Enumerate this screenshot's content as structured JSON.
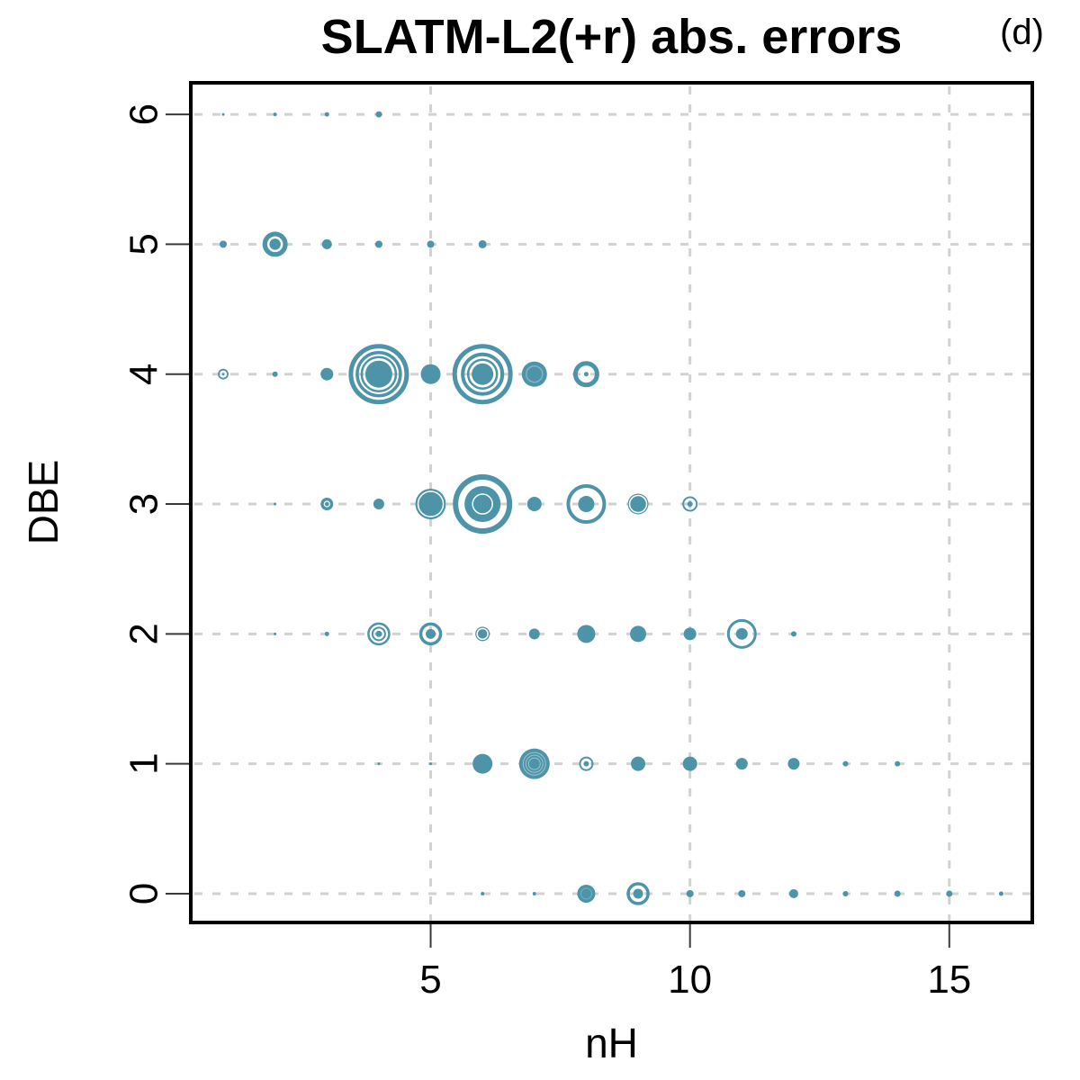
{
  "title": {
    "text": "SLATM-L2(+r) abs. errors",
    "panel_label": "(d)"
  },
  "colors": {
    "bubble": "#4d94a9",
    "grid": "#d2d2d2",
    "frame": "#000000",
    "tick": "#3a3a3a",
    "background": "#ffffff"
  },
  "chart_data": {
    "type": "scatter",
    "subtype": "bubble",
    "title": "SLATM-L2(+r) abs. errors",
    "panel": "(d)",
    "xlabel": "nH",
    "ylabel": "DBE",
    "x_ticks": [
      5,
      10,
      15
    ],
    "y_ticks": [
      0,
      1,
      2,
      3,
      4,
      5,
      6
    ],
    "xlim": [
      0.375,
      16.6
    ],
    "ylim": [
      -0.222,
      6.243
    ],
    "grid": "dashed",
    "x_gridlines": [
      5,
      10,
      15
    ],
    "y_gridlines": [
      0,
      1,
      2,
      3,
      4,
      5,
      6
    ],
    "legend": null,
    "points": [
      {
        "nH": 1,
        "DBE": 6,
        "fill": 1.5
      },
      {
        "nH": 2,
        "DBE": 6,
        "fill": 2
      },
      {
        "nH": 3,
        "DBE": 6,
        "fill": 2.5
      },
      {
        "nH": 4,
        "DBE": 6,
        "fill": 3.5
      },
      {
        "nH": 1,
        "DBE": 5,
        "fill": 4
      },
      {
        "nH": 2,
        "DBE": 5,
        "fill": 14,
        "wrings": [
          [
            7.5,
            2.5,
            1
          ]
        ]
      },
      {
        "nH": 3,
        "DBE": 5,
        "fill": 5.5
      },
      {
        "nH": 4,
        "DBE": 5,
        "fill": 4
      },
      {
        "nH": 5,
        "DBE": 5,
        "fill": 4
      },
      {
        "nH": 6,
        "DBE": 5,
        "fill": 4.5
      },
      {
        "nH": 1,
        "DBE": 4,
        "rings": [
          [
            5,
            1.8
          ]
        ],
        "dot": 1.5
      },
      {
        "nH": 2,
        "DBE": 4,
        "fill": 3
      },
      {
        "nH": 3,
        "DBE": 4,
        "fill": 7
      },
      {
        "nH": 4,
        "DBE": 4,
        "rings": [
          [
            31,
            5
          ],
          [
            24,
            3.5
          ],
          [
            19,
            2.5
          ]
        ],
        "fill": 15
      },
      {
        "nH": 5,
        "DBE": 4,
        "fill": 11
      },
      {
        "nH": 6,
        "DBE": 4,
        "rings": [
          [
            31,
            5
          ],
          [
            22,
            4
          ],
          [
            16,
            2.5
          ]
        ],
        "fill": 12
      },
      {
        "nH": 7,
        "DBE": 4,
        "fill": 14,
        "wrings": [
          [
            9,
            1.5,
            0.3
          ]
        ]
      },
      {
        "nH": 8,
        "DBE": 4,
        "rings": [
          [
            12,
            5
          ]
        ],
        "dot": 2.5
      },
      {
        "nH": 2,
        "DBE": 3,
        "fill": 1.5
      },
      {
        "nH": 3,
        "DBE": 3,
        "fill": 7,
        "wrings": [
          [
            3,
            1.2,
            1
          ]
        ]
      },
      {
        "nH": 4,
        "DBE": 3,
        "fill": 6
      },
      {
        "nH": 5,
        "DBE": 3,
        "fill": 17,
        "wrings": [
          [
            14,
            1.5,
            1
          ]
        ]
      },
      {
        "nH": 6,
        "DBE": 3,
        "rings": [
          [
            30,
            6
          ]
        ],
        "fill": 20,
        "wrings": [
          [
            11,
            1.5,
            1
          ]
        ]
      },
      {
        "nH": 7,
        "DBE": 3,
        "fill": 8
      },
      {
        "nH": 8,
        "DBE": 3,
        "rings": [
          [
            20,
            4
          ]
        ],
        "dot": 9
      },
      {
        "nH": 9,
        "DBE": 3,
        "fill": 11.5,
        "wrings": [
          [
            9.5,
            1.5,
            1
          ]
        ]
      },
      {
        "nH": 10,
        "DBE": 3,
        "rings": [
          [
            7.5,
            2
          ]
        ],
        "dot": 3
      },
      {
        "nH": 2,
        "DBE": 2,
        "fill": 1.5
      },
      {
        "nH": 3,
        "DBE": 2,
        "fill": 2.5
      },
      {
        "nH": 4,
        "DBE": 2,
        "rings": [
          [
            11.5,
            2.5
          ],
          [
            7,
            2
          ]
        ],
        "dot": 3.5
      },
      {
        "nH": 5,
        "DBE": 2,
        "rings": [
          [
            11,
            3.5
          ]
        ],
        "dot": 5.5
      },
      {
        "nH": 6,
        "DBE": 2,
        "fill": 8,
        "wrings": [
          [
            6,
            1.5,
            1
          ]
        ]
      },
      {
        "nH": 7,
        "DBE": 2,
        "fill": 6
      },
      {
        "nH": 8,
        "DBE": 2,
        "fill": 10
      },
      {
        "nH": 9,
        "DBE": 2,
        "fill": 9
      },
      {
        "nH": 10,
        "DBE": 2,
        "fill": 7
      },
      {
        "nH": 11,
        "DBE": 2,
        "rings": [
          [
            15,
            3
          ]
        ],
        "dot": 6.5
      },
      {
        "nH": 12,
        "DBE": 2,
        "fill": 3
      },
      {
        "nH": 4,
        "DBE": 1,
        "fill": 1.5
      },
      {
        "nH": 5,
        "DBE": 1,
        "fill": 1.5
      },
      {
        "nH": 6,
        "DBE": 1,
        "fill": 11
      },
      {
        "nH": 7,
        "DBE": 1,
        "fill": 17,
        "wrings": [
          [
            12.5,
            1,
            0.45
          ],
          [
            9.5,
            1,
            0.45
          ],
          [
            6.5,
            1,
            0.45
          ]
        ]
      },
      {
        "nH": 8,
        "DBE": 1,
        "rings": [
          [
            7,
            2
          ]
        ],
        "dot": 3
      },
      {
        "nH": 9,
        "DBE": 1,
        "fill": 8
      },
      {
        "nH": 10,
        "DBE": 1,
        "fill": 8
      },
      {
        "nH": 11,
        "DBE": 1,
        "fill": 6.5
      },
      {
        "nH": 12,
        "DBE": 1,
        "fill": 6.5
      },
      {
        "nH": 13,
        "DBE": 1,
        "fill": 3
      },
      {
        "nH": 14,
        "DBE": 1,
        "fill": 3
      },
      {
        "nH": 6,
        "DBE": 0,
        "fill": 2
      },
      {
        "nH": 7,
        "DBE": 0,
        "fill": 2
      },
      {
        "nH": 8,
        "DBE": 0,
        "fill": 10,
        "wrings": [
          [
            6,
            1,
            0.25
          ]
        ]
      },
      {
        "nH": 9,
        "DBE": 0,
        "rings": [
          [
            11,
            3.5
          ]
        ],
        "dot": 5.5
      },
      {
        "nH": 10,
        "DBE": 0,
        "fill": 4
      },
      {
        "nH": 11,
        "DBE": 0,
        "fill": 4
      },
      {
        "nH": 12,
        "DBE": 0,
        "fill": 5
      },
      {
        "nH": 13,
        "DBE": 0,
        "fill": 3
      },
      {
        "nH": 14,
        "DBE": 0,
        "fill": 3.5
      },
      {
        "nH": 15,
        "DBE": 0,
        "fill": 3.5
      },
      {
        "nH": 16,
        "DBE": 0,
        "fill": 2.5
      }
    ]
  }
}
